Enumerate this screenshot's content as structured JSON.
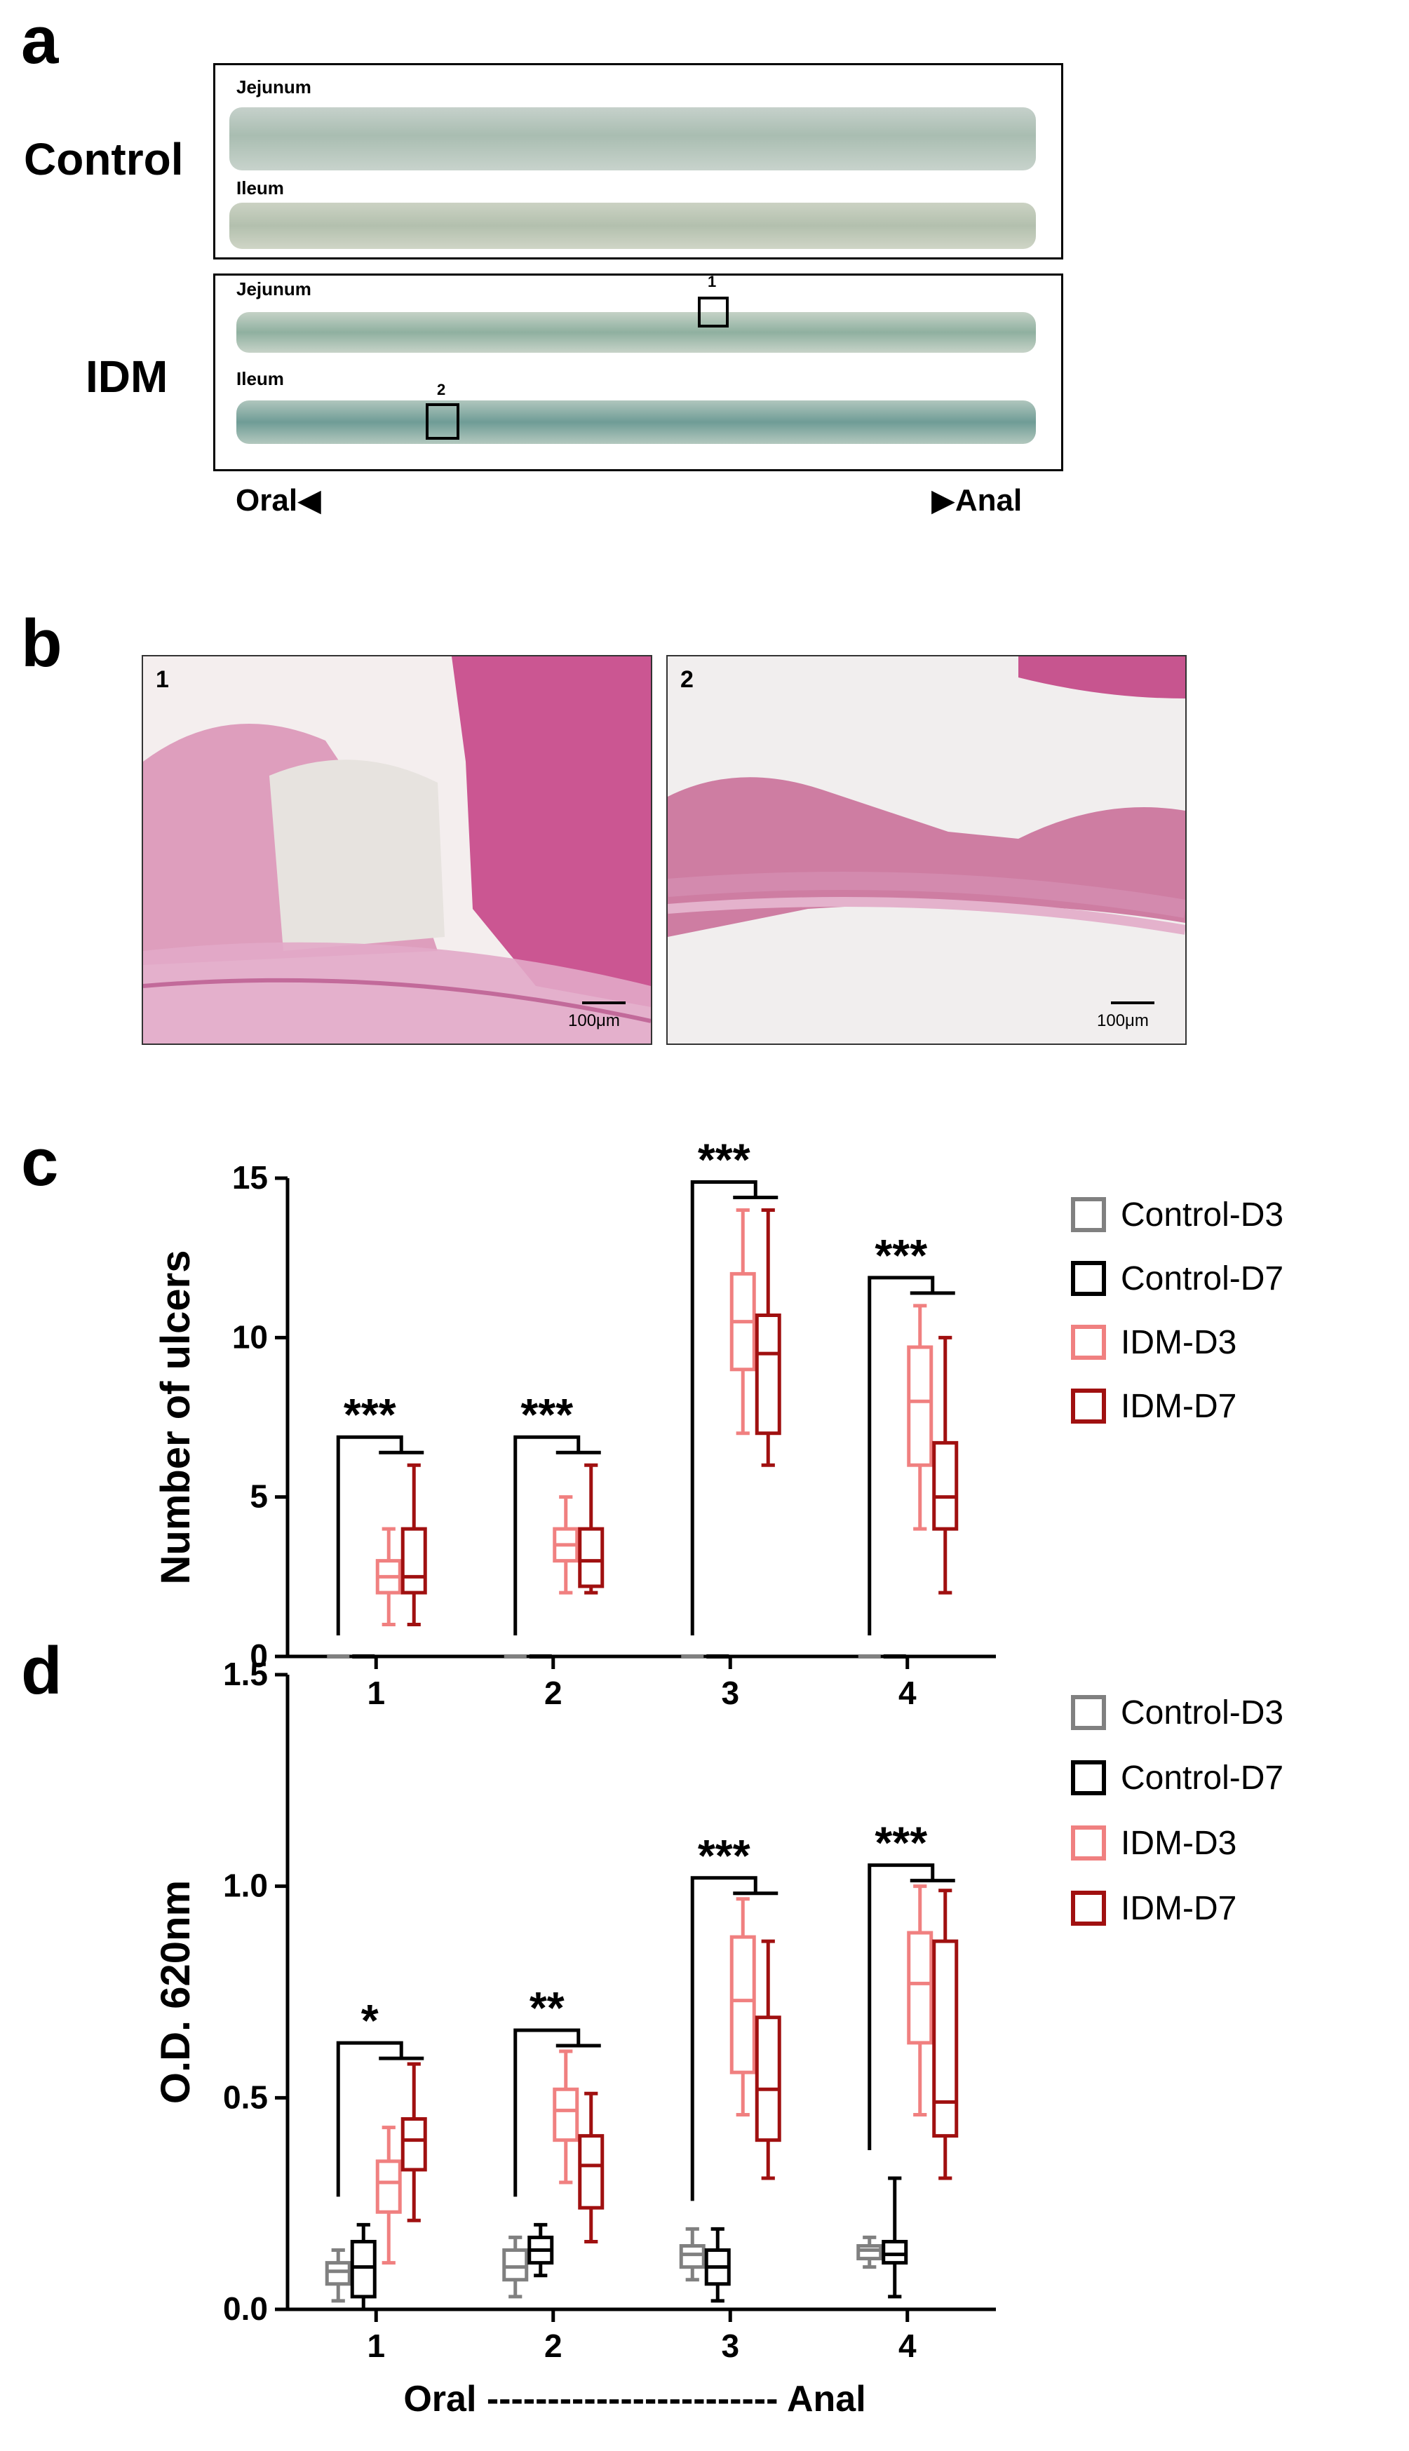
{
  "panels": {
    "a": {
      "letter": "a",
      "groups": [
        {
          "name": "Control",
          "segments": [
            "Jejunum",
            "Ileum"
          ]
        },
        {
          "name": "IDM",
          "segments": [
            "Jejunum",
            "Ileum"
          ]
        }
      ],
      "boxes": [
        "1",
        "2"
      ],
      "oral_label": "Oral",
      "anal_label": "Anal"
    },
    "b": {
      "letter": "b",
      "images": [
        {
          "number": "1",
          "scale": "100μm"
        },
        {
          "number": "2",
          "scale": "100μm"
        }
      ]
    },
    "c": {
      "letter": "c"
    },
    "d": {
      "letter": "d"
    }
  },
  "chart_data": [
    {
      "type": "box",
      "panel": "c",
      "ylabel": "Number of ulcers",
      "xlabel": "Oral ------------------------ Anal",
      "categories": [
        "1",
        "2",
        "3",
        "4"
      ],
      "ylim": [
        0,
        15
      ],
      "yticks": [
        "0",
        "5",
        "10",
        "15"
      ],
      "legend": [
        "Control-D3",
        "Control-D7",
        "IDM-D3",
        "IDM-D7"
      ],
      "colors": {
        "Control-D3": "#808080",
        "Control-D7": "#000000",
        "IDM-D3": "#f08080",
        "IDM-D7": "#a01010"
      },
      "series": [
        {
          "name": "Control-D3",
          "boxes": [
            [
              0,
              0,
              0,
              0,
              0
            ],
            [
              0,
              0,
              0,
              0,
              0
            ],
            [
              0,
              0,
              0,
              0,
              0
            ],
            [
              0,
              0,
              0,
              0,
              0
            ]
          ]
        },
        {
          "name": "Control-D7",
          "boxes": [
            [
              0,
              0,
              0,
              0,
              0
            ],
            [
              0,
              0,
              0,
              0,
              0
            ],
            [
              0,
              0,
              0,
              0,
              0
            ],
            [
              0,
              0,
              0,
              0,
              0
            ]
          ]
        },
        {
          "name": "IDM-D3",
          "boxes": [
            [
              1,
              2,
              2.5,
              3,
              4
            ],
            [
              2,
              3,
              3.5,
              4,
              5
            ],
            [
              7,
              9,
              10.5,
              12,
              14
            ],
            [
              4,
              6,
              8,
              9.7,
              11
            ]
          ]
        },
        {
          "name": "IDM-D7",
          "boxes": [
            [
              1,
              2,
              2.5,
              4,
              6
            ],
            [
              2,
              2.2,
              3,
              4,
              6
            ],
            [
              6,
              7,
              9.5,
              10.7,
              14
            ],
            [
              2,
              4,
              5,
              6.7,
              10
            ]
          ]
        }
      ],
      "significance": [
        "***",
        "***",
        "***",
        "***"
      ]
    },
    {
      "type": "box",
      "panel": "d",
      "ylabel": "O.D. 620nm",
      "xlabel": "Oral ------------------------ Anal",
      "categories": [
        "1",
        "2",
        "3",
        "4"
      ],
      "ylim": [
        0,
        1.5
      ],
      "yticks": [
        "0.0",
        "0.5",
        "1.0",
        "1.5"
      ],
      "legend": [
        "Control-D3",
        "Control-D7",
        "IDM-D3",
        "IDM-D7"
      ],
      "colors": {
        "Control-D3": "#808080",
        "Control-D7": "#000000",
        "IDM-D3": "#f08080",
        "IDM-D7": "#a01010"
      },
      "series": [
        {
          "name": "Control-D3",
          "boxes": [
            [
              0.02,
              0.06,
              0.09,
              0.11,
              0.14
            ],
            [
              0.03,
              0.07,
              0.1,
              0.14,
              0.17
            ],
            [
              0.07,
              0.1,
              0.13,
              0.15,
              0.19
            ],
            [
              0.1,
              0.12,
              0.14,
              0.15,
              0.17
            ]
          ]
        },
        {
          "name": "Control-D7",
          "boxes": [
            [
              0,
              0.03,
              0.1,
              0.16,
              0.2
            ],
            [
              0.08,
              0.11,
              0.14,
              0.17,
              0.2
            ],
            [
              0.02,
              0.06,
              0.1,
              0.14,
              0.19
            ],
            [
              0.03,
              0.11,
              0.13,
              0.16,
              0.31
            ]
          ]
        },
        {
          "name": "IDM-D3",
          "boxes": [
            [
              0.11,
              0.23,
              0.3,
              0.35,
              0.43
            ],
            [
              0.3,
              0.4,
              0.47,
              0.52,
              0.61
            ],
            [
              0.46,
              0.56,
              0.73,
              0.88,
              0.97
            ],
            [
              0.46,
              0.63,
              0.77,
              0.89,
              1.0
            ]
          ]
        },
        {
          "name": "IDM-D7",
          "boxes": [
            [
              0.21,
              0.33,
              0.4,
              0.45,
              0.58
            ],
            [
              0.16,
              0.24,
              0.34,
              0.41,
              0.51
            ],
            [
              0.31,
              0.4,
              0.52,
              0.69,
              0.87
            ],
            [
              0.31,
              0.41,
              0.49,
              0.87,
              0.99
            ]
          ]
        }
      ],
      "significance": [
        "*",
        "**",
        "***",
        "***"
      ]
    }
  ]
}
